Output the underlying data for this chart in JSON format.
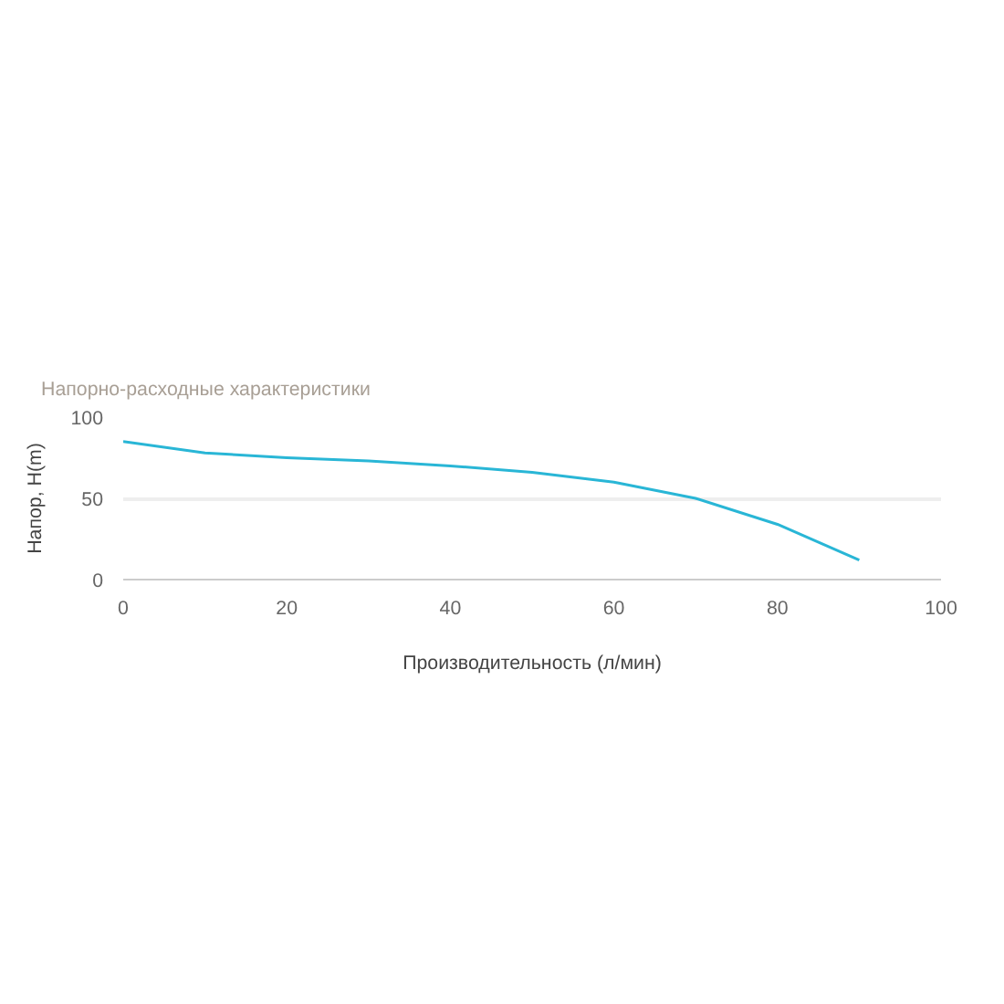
{
  "chart_data": {
    "type": "line",
    "title": "Напорно-расходные характеристики",
    "xlabel": "Производительность (л/мин)",
    "ylabel": "Напор, H(m)",
    "x": [
      0,
      10,
      20,
      30,
      40,
      50,
      60,
      70,
      80,
      90
    ],
    "series": [
      {
        "color": "#29b6d6",
        "values": [
          85,
          78,
          75,
          73,
          70,
          66,
          60,
          50,
          34,
          12
        ]
      }
    ],
    "xlim": [
      0,
      100
    ],
    "xticks": [
      0,
      20,
      40,
      60,
      80,
      100
    ],
    "ylim": [
      0,
      100
    ],
    "yticks": [
      0,
      50,
      100
    ],
    "grid": "y",
    "marker": "none",
    "line_style": "solid"
  }
}
